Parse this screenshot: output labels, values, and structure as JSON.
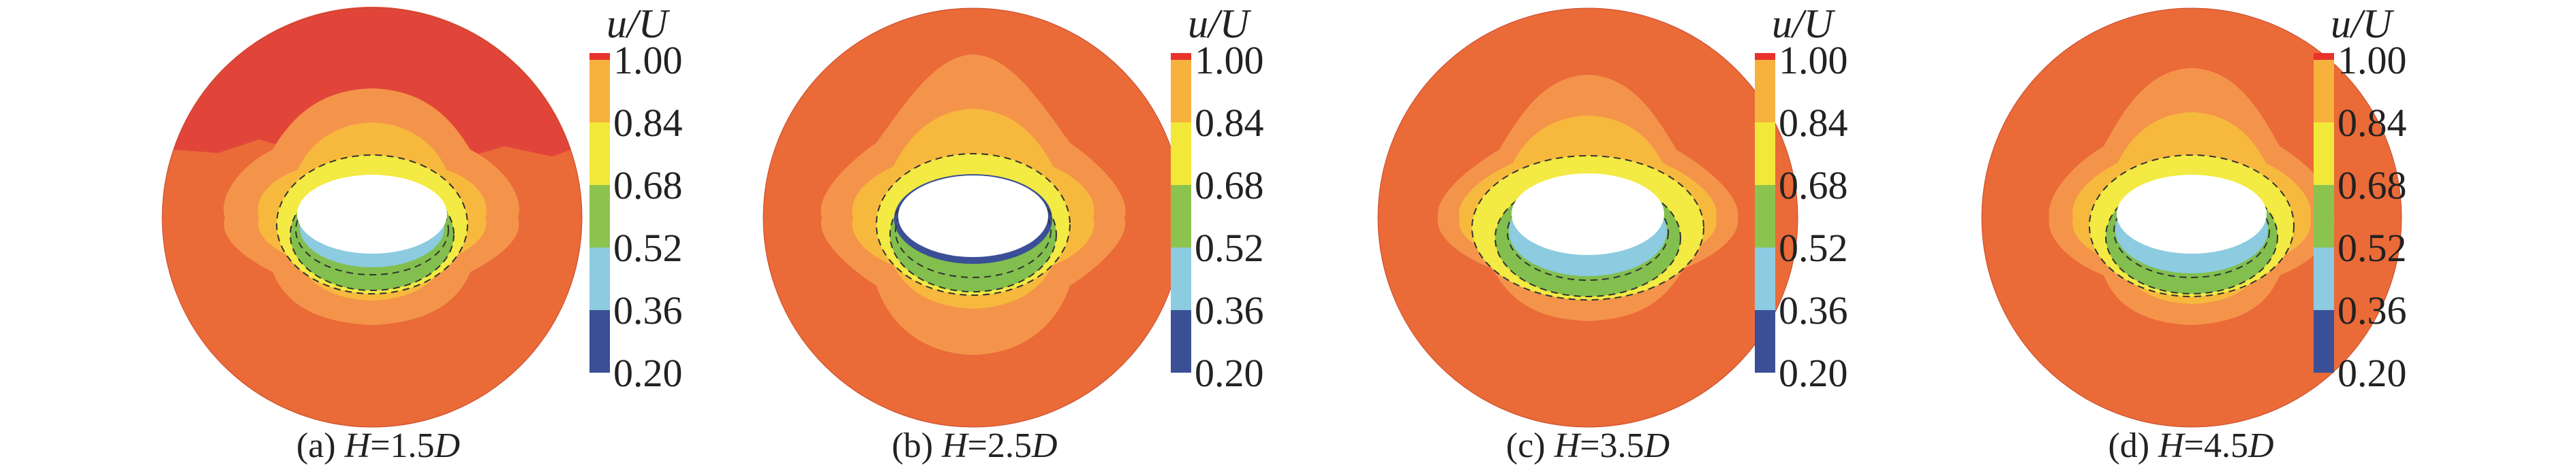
{
  "chart_data": {
    "type": "contour",
    "colorbar": {
      "title": "u/U",
      "ticks": [
        "1.00",
        "0.84",
        "0.68",
        "0.52",
        "0.36",
        "0.20"
      ],
      "range": [
        0.2,
        1.0
      ],
      "bands": [
        {
          "from": 0.2,
          "to": 0.36,
          "color": "#3a4f96"
        },
        {
          "from": 0.36,
          "to": 0.52,
          "color": "#8ccbe0"
        },
        {
          "from": 0.52,
          "to": 0.68,
          "color": "#8cc34f"
        },
        {
          "from": 0.68,
          "to": 0.84,
          "color": "#f2e83a"
        },
        {
          "from": 0.84,
          "to": 1.0,
          "color": "#f7b23e"
        },
        {
          "from": 1.0,
          "to": 1.02,
          "color": "#e8322b"
        }
      ]
    },
    "panels": [
      {
        "label": "(a)",
        "var": "H",
        "eq": "=1.5",
        "unit": "D"
      },
      {
        "label": "(b)",
        "var": "H",
        "eq": "=2.5",
        "unit": "D"
      },
      {
        "label": "(c)",
        "var": "H",
        "eq": "=3.5",
        "unit": "D"
      },
      {
        "label": "(d)",
        "var": "H",
        "eq": "=4.5",
        "unit": "D"
      }
    ],
    "colors": {
      "outer": "#ea6a38",
      "outer_top_a": "#e1453a",
      "ring_light_orange": "#f4944a",
      "ring_gold": "#f7b83e",
      "ring_yellow": "#f3ea43",
      "ring_green": "#82bf4e",
      "core_blue": "#8ccbe0",
      "hole": "#ffffff"
    }
  }
}
